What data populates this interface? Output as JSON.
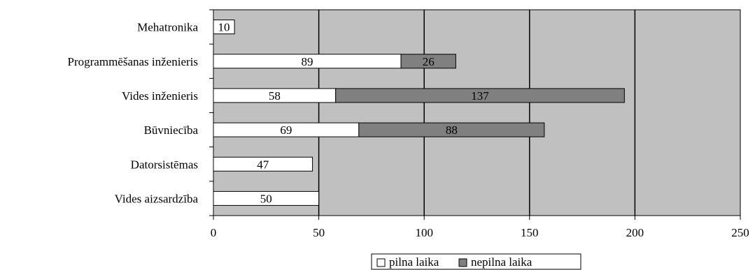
{
  "chart_data": {
    "type": "bar",
    "orientation": "horizontal",
    "stacked": true,
    "categories": [
      "Mehatronika",
      "Programmēšanas inženieris",
      "Vides inženieris",
      "Būvniecība",
      "Datorsistēmas",
      "Vides aizsardzība"
    ],
    "series": [
      {
        "name": "pilna laika",
        "values": [
          10,
          89,
          58,
          69,
          47,
          50
        ],
        "labels": [
          "10",
          "89",
          "58",
          "69",
          "47",
          "50"
        ]
      },
      {
        "name": "nepilna laika",
        "values": [
          0,
          26,
          137,
          88,
          0,
          0
        ],
        "labels": [
          "",
          "26",
          "137",
          "88",
          "",
          ""
        ]
      }
    ],
    "xlim": [
      0,
      250
    ],
    "xticks": [
      0,
      50,
      100,
      150,
      200,
      250
    ],
    "xtick_labels": [
      "0",
      "50",
      "100",
      "150",
      "200",
      "250"
    ],
    "grid": "vertical",
    "legend": "bottom",
    "colors": {
      "plot_background": "#c0c0c0",
      "pilna laika": "#ffffff",
      "nepilna laika": "#808080",
      "gridline": "#000000"
    }
  }
}
